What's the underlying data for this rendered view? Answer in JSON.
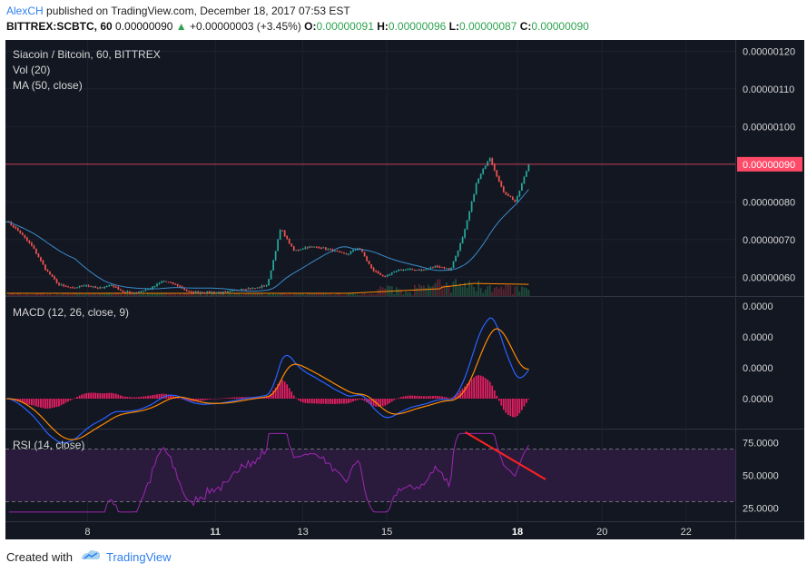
{
  "header": {
    "author": "AlexCH",
    "published": "published on TradingView.com, December 18, 2017 07:53 EST",
    "symbol": "BITTREX:SCBTC, 60",
    "price": "0.00000090",
    "change": "+0.00000003 (+3.45%)",
    "open_label": "O:",
    "open": "0.00000091",
    "high_label": "H:",
    "high": "0.00000096",
    "low_label": "L:",
    "low": "0.00000087",
    "close_label": "C:",
    "close": "0.00000090"
  },
  "footer": {
    "created_with": "Created with",
    "brand": "TradingView"
  },
  "colors": {
    "background": "#131722",
    "up": "#26a69a",
    "down": "#ef5350",
    "ma": "#3a8bc9",
    "macd": "#2962ff",
    "signal": "#ff8a00",
    "hist": "#e91e63",
    "rsi": "#9c27b0",
    "rsi_band": "#2a1b3d",
    "trendline": "#ff2222",
    "price_line": "#ff4a68"
  },
  "chart_data": [
    {
      "type": "candlestick",
      "title": "Siacoin / Bitcoin, 60, BITTREX",
      "indicators": [
        "Vol (20)",
        "MA (50, close)"
      ],
      "x_tick_labels": [
        "8",
        "11",
        "13",
        "15",
        "18",
        "20",
        "22"
      ],
      "y_tick_labels": [
        "0.00000120",
        "0.00000110",
        "0.00000100",
        "0.00000080",
        "0.00000070",
        "0.00000060"
      ],
      "last_price_label": "0.00000090",
      "ylim": [
        5.5e-07,
        1.23e-06
      ],
      "close_series_approx": [
        7.5e-07,
        7.2e-07,
        6.8e-07,
        6.2e-07,
        5.8e-07,
        5.7e-07,
        5.8e-07,
        5.7e-07,
        5.8e-07,
        5.6e-07,
        5.6e-07,
        5.7e-07,
        5.9e-07,
        5.8e-07,
        5.6e-07,
        5.6e-07,
        5.6e-07,
        5.6e-07,
        5.7e-07,
        5.7e-07,
        5.8e-07,
        7.3e-07,
        6.7e-07,
        6.8e-07,
        6.8e-07,
        6.7e-07,
        6.6e-07,
        6.8e-07,
        6.2e-07,
        6e-07,
        6.2e-07,
        6.2e-07,
        6.2e-07,
        6.3e-07,
        6.2e-07,
        7.1e-07,
        8.5e-07,
        9.2e-07,
        8.3e-07,
        8e-07,
        9e-07
      ]
    },
    {
      "type": "line",
      "title": "MACD (12, 26, close, 9)",
      "y_tick_labels": [
        "0.0000",
        "0.0000",
        "0.0000",
        "0.0000"
      ],
      "series_names": [
        "MACD",
        "Signal",
        "Histogram"
      ]
    },
    {
      "type": "line",
      "title": "RSI (14, close)",
      "y_tick_labels": [
        "75.0000",
        "50.0000",
        "25.0000"
      ],
      "band": [
        30,
        70
      ],
      "ylim": [
        15,
        85
      ],
      "trendline": {
        "from": [
          0.63,
          83
        ],
        "to": [
          0.74,
          47
        ]
      }
    }
  ]
}
